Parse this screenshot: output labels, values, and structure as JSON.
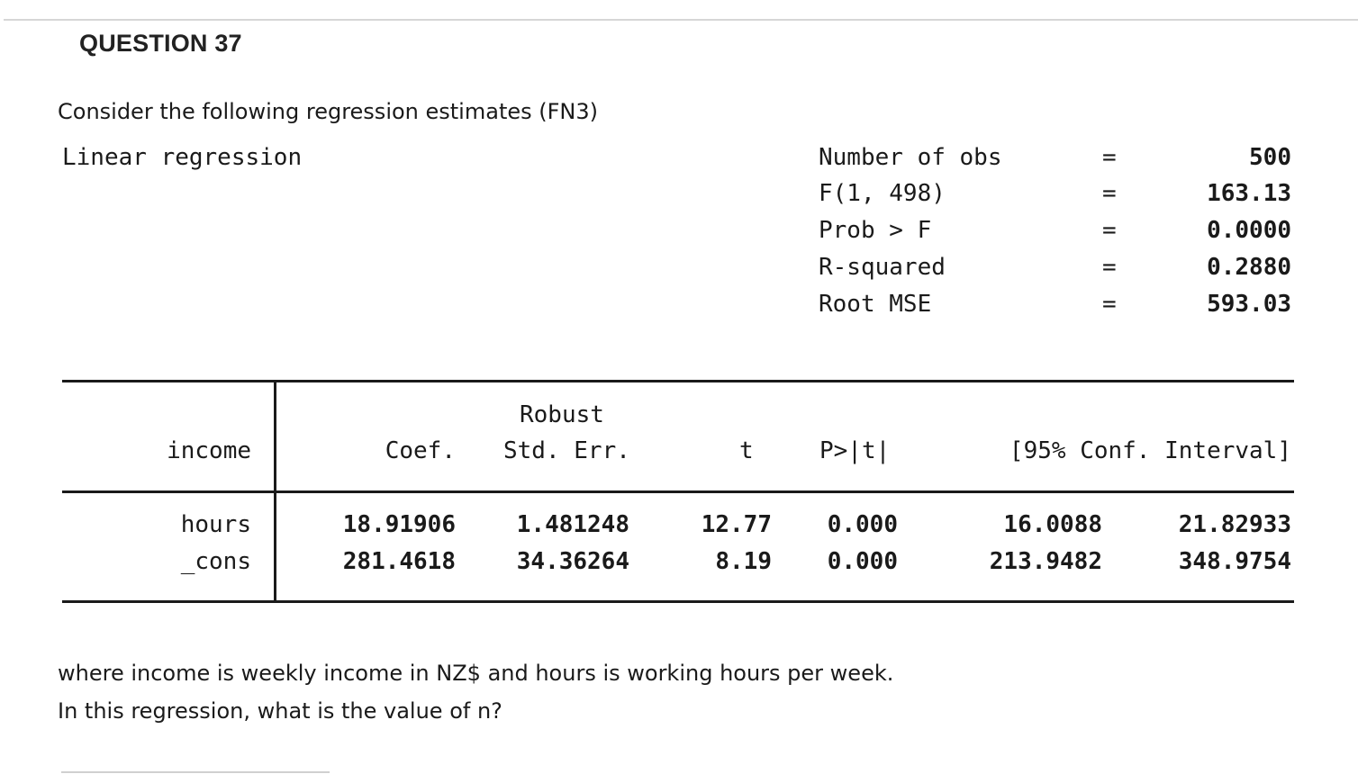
{
  "question": {
    "title": "QUESTION 37",
    "intro": "Consider the following regression estimates (FN3)",
    "explanation": "where income is weekly income in NZ$ and hours is working hours per week.",
    "prompt": "In this regression, what is the value of n?"
  },
  "output": {
    "model_title": "Linear regression",
    "stats": [
      {
        "label": "Number of obs",
        "eq": "=",
        "value": "500"
      },
      {
        "label": "F(1, 498)",
        "eq": "=",
        "value": "163.13"
      },
      {
        "label": "Prob > F",
        "eq": "=",
        "value": "0.0000"
      },
      {
        "label": "R-squared",
        "eq": "=",
        "value": "0.2880"
      },
      {
        "label": "Root MSE",
        "eq": "=",
        "value": "593.03"
      }
    ],
    "table": {
      "depvar": "income",
      "header_over": "Robust",
      "headers": [
        "Coef.",
        "Std. Err.",
        "t",
        "P>|t|",
        "[95% Conf. Interval]"
      ],
      "rows": [
        {
          "name": "hours",
          "coef": "18.91906",
          "se": "1.481248",
          "t": "12.77",
          "p": "0.000",
          "lo": "16.0088",
          "hi": "21.82933"
        },
        {
          "name": "_cons",
          "coef": "281.4618",
          "se": "34.36264",
          "t": "8.19",
          "p": "0.000",
          "lo": "213.9482",
          "hi": "348.9754"
        }
      ]
    }
  }
}
